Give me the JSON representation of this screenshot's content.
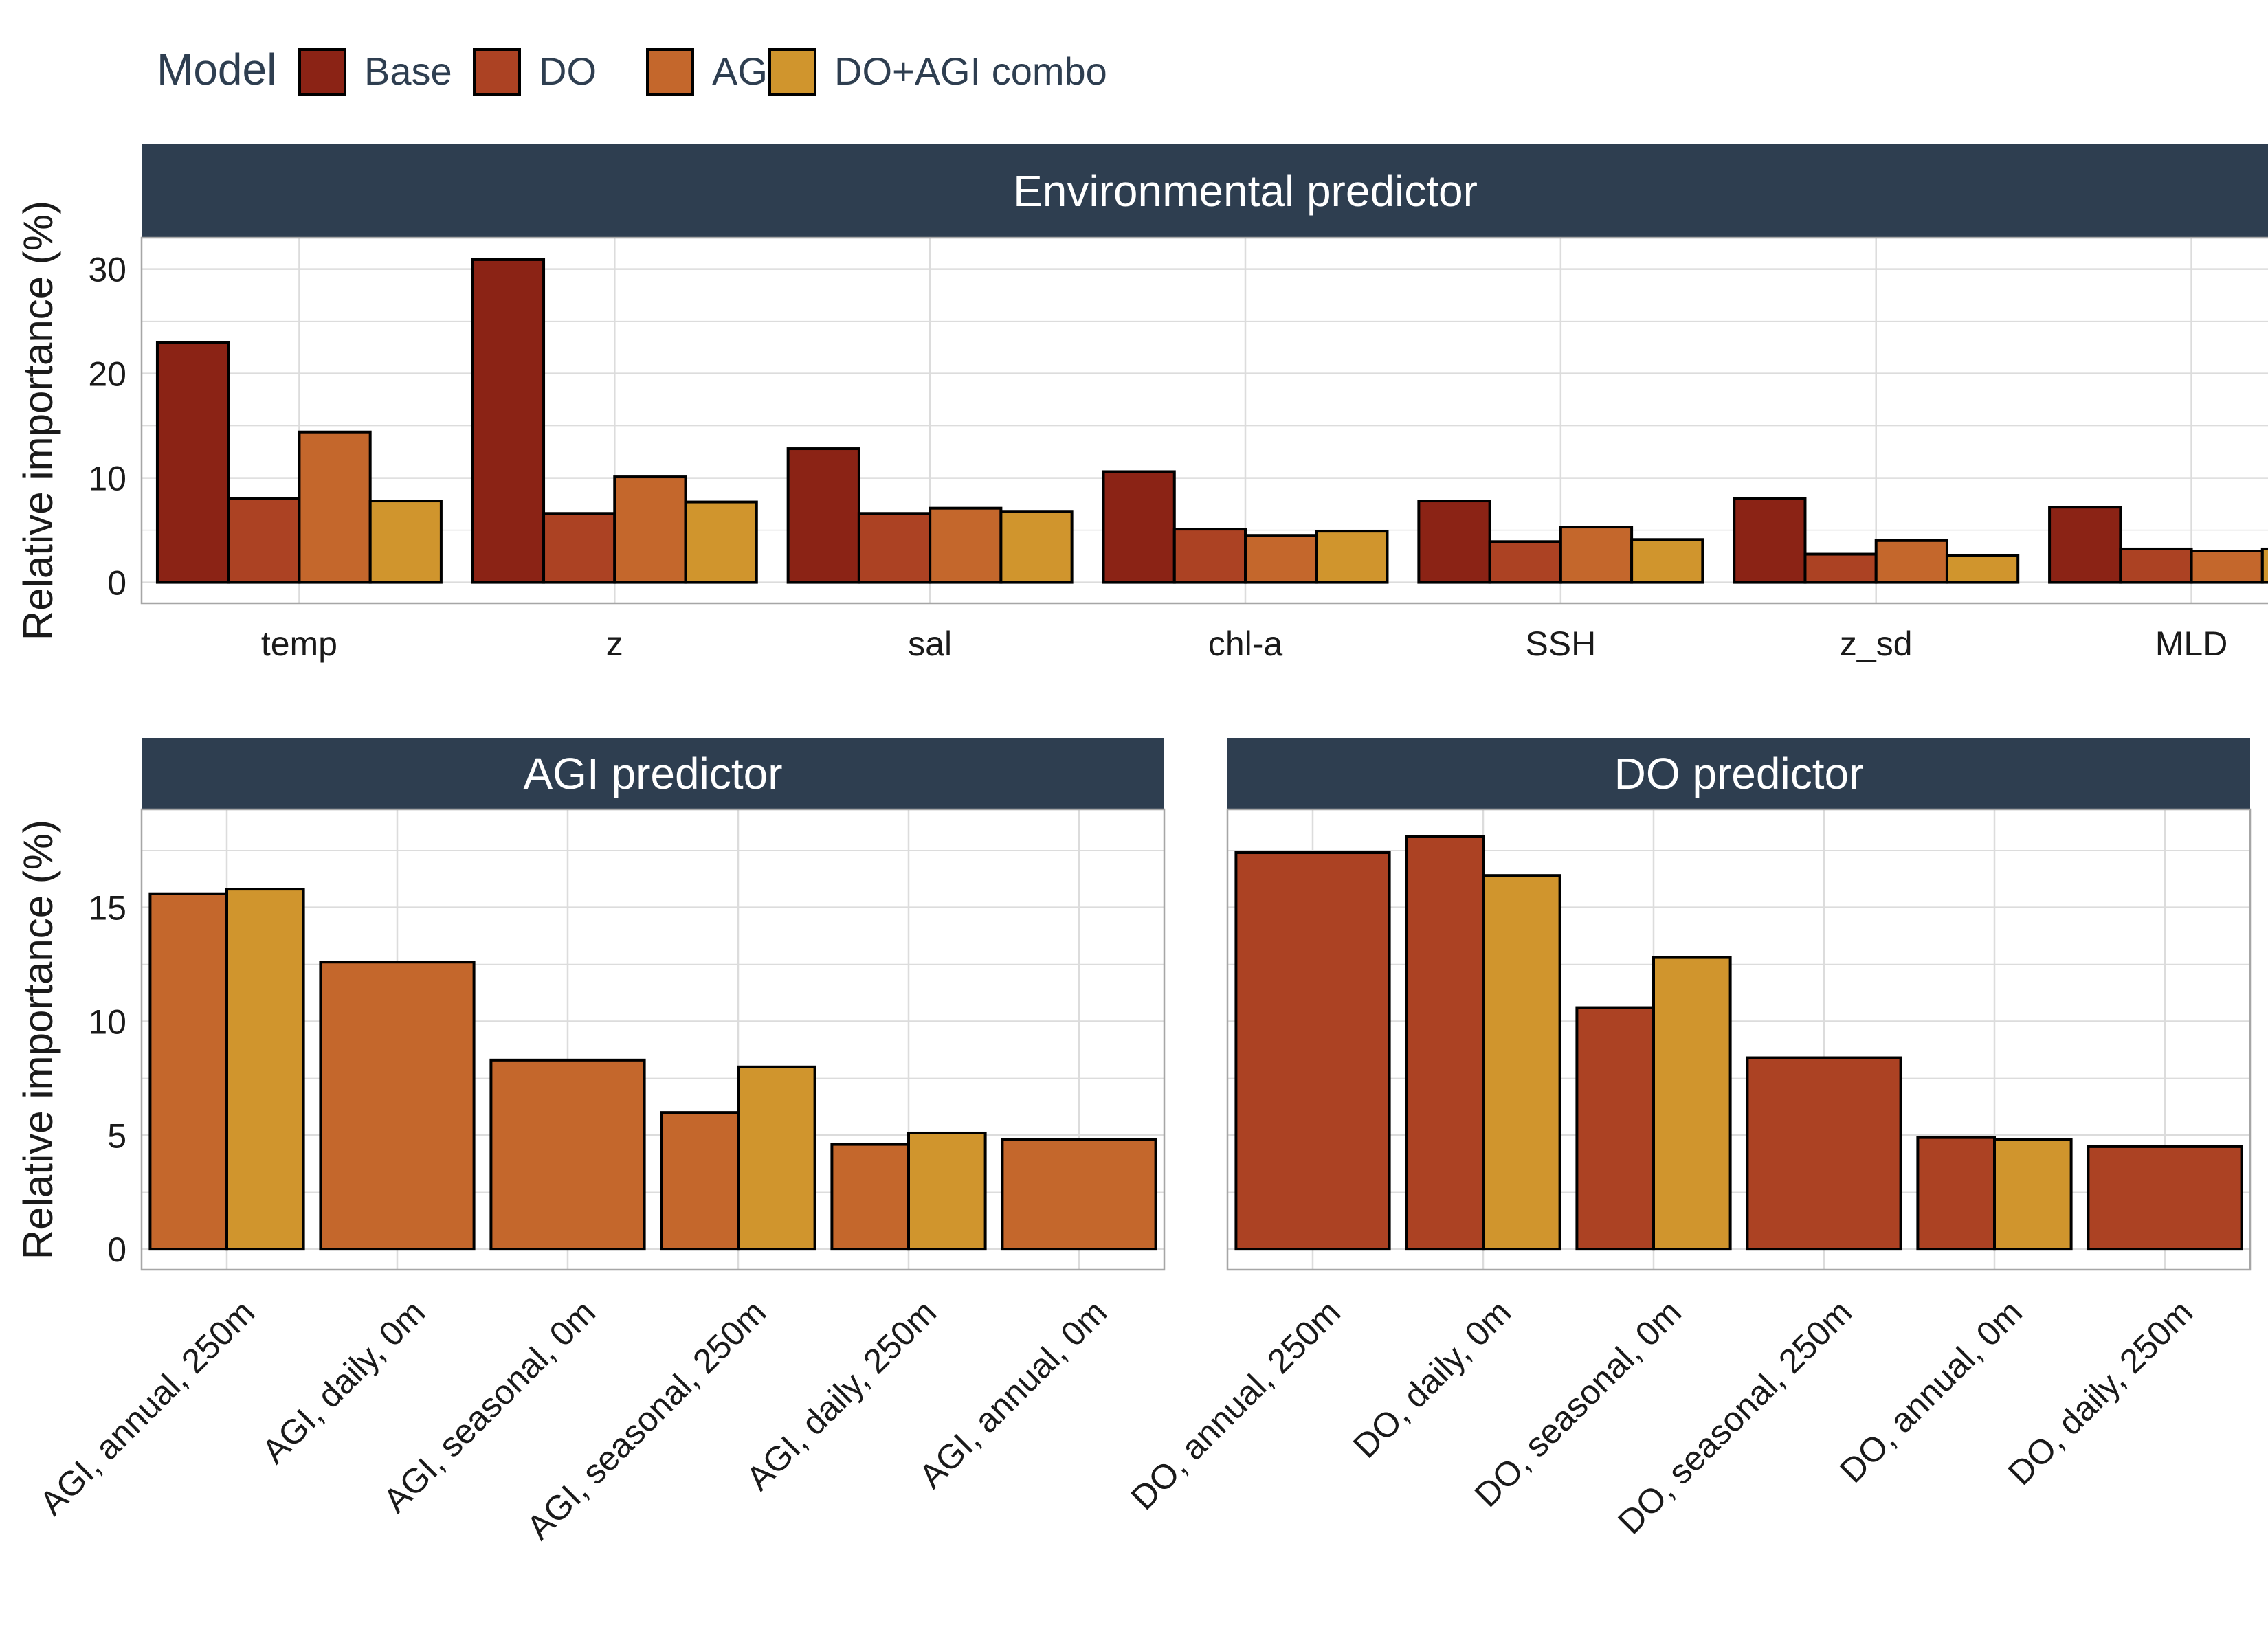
{
  "legend": {
    "title": "Model",
    "entries": [
      {
        "name": "Base",
        "color": "#8B2315"
      },
      {
        "name": "DO",
        "color": "#AC4223"
      },
      {
        "name": "AGI",
        "color": "#C4672C"
      },
      {
        "name": "DO+AGI combo",
        "color": "#D0952D"
      }
    ]
  },
  "strip_color": "#2E3E50",
  "chart_data": [
    {
      "type": "bar",
      "title": "Environmental predictor",
      "ylabel": "Relative importance (%)",
      "ylim": [
        -2,
        33
      ],
      "yticks": [
        0,
        10,
        20,
        30
      ],
      "grid": true,
      "categories": [
        "temp",
        "z",
        "sal",
        "chl-a",
        "SSH",
        "z_sd",
        "MLD"
      ],
      "series": [
        {
          "name": "Base",
          "values": [
            23.0,
            30.9,
            12.8,
            10.6,
            7.8,
            8.0,
            7.2
          ]
        },
        {
          "name": "DO",
          "values": [
            8.0,
            6.6,
            6.6,
            5.1,
            3.9,
            2.7,
            3.2
          ]
        },
        {
          "name": "AGI",
          "values": [
            14.4,
            10.1,
            7.1,
            4.5,
            5.3,
            4.0,
            3.0
          ]
        },
        {
          "name": "DO+AGI combo",
          "values": [
            7.8,
            7.7,
            6.8,
            4.9,
            4.1,
            2.6,
            3.2
          ]
        }
      ]
    },
    {
      "type": "bar",
      "title": "AGI predictor",
      "ylabel": "Relative importance (%)",
      "ylim": [
        -0.9,
        19.3
      ],
      "yticks": [
        0,
        5,
        10,
        15
      ],
      "grid": true,
      "categories": [
        "AGI, annual, 250m",
        "AGI, daily, 0m",
        "AGI, seasonal, 0m",
        "AGI, seasonal, 250m",
        "AGI, daily, 250m",
        "AGI, annual, 0m"
      ],
      "series": [
        {
          "name": "AGI",
          "values": [
            15.6,
            12.6,
            8.3,
            6.0,
            4.6,
            4.8
          ]
        },
        {
          "name": "DO+AGI combo",
          "values": [
            15.8,
            null,
            null,
            8.0,
            5.1,
            null
          ]
        }
      ]
    },
    {
      "type": "bar",
      "title": "DO predictor",
      "ylabel": "",
      "ylim": [
        -0.9,
        19.3
      ],
      "yticks": [
        0,
        5,
        10,
        15
      ],
      "grid": true,
      "categories": [
        "DO, annual, 250m",
        "DO, daily, 0m",
        "DO, seasonal, 0m",
        "DO, seasonal, 250m",
        "DO, annual, 0m",
        "DO, daily, 250m"
      ],
      "series": [
        {
          "name": "DO",
          "values": [
            17.4,
            18.1,
            10.6,
            8.4,
            4.9,
            4.5
          ]
        },
        {
          "name": "DO+AGI combo",
          "values": [
            null,
            16.4,
            12.8,
            null,
            4.8,
            null
          ]
        }
      ]
    }
  ]
}
